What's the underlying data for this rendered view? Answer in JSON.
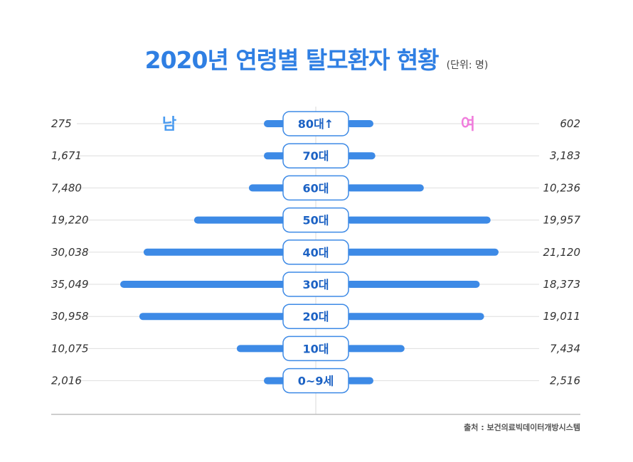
{
  "title": "2020년 연령별 탈모환자 현황",
  "unit": "(단위: 명)",
  "source": "출처 : 보건의료빅데이터개방시스템",
  "colors": {
    "title": "#2f7fe3",
    "bar": "#3d8ae6",
    "male_label": "#4a9bf0",
    "female_label": "#f07ddc",
    "badge_border": "#3d8ae6",
    "badge_text": "#1c62c4"
  },
  "chart_data": {
    "type": "bar",
    "orientation": "horizontal-butterfly",
    "categories": [
      "80대↑",
      "70대",
      "60대",
      "50대",
      "40대",
      "30대",
      "20대",
      "10대",
      "0~9세"
    ],
    "series": [
      {
        "name": "남",
        "side": "left",
        "values": [
          275,
          1671,
          7480,
          19220,
          30038,
          35049,
          30958,
          10075,
          2016
        ]
      },
      {
        "name": "여",
        "side": "right",
        "values": [
          602,
          3183,
          10236,
          19957,
          21120,
          18373,
          19011,
          7434,
          2516
        ]
      }
    ],
    "male_labels": [
      "275",
      "1,671",
      "7,480",
      "19,220",
      "30,038",
      "35,049",
      "30,958",
      "10,075",
      "2,016"
    ],
    "female_labels": [
      "602",
      "3,183",
      "10,236",
      "19,957",
      "21,120",
      "18,373",
      "19,011",
      "7,434",
      "2,516"
    ],
    "grid": true,
    "legend": [
      "남",
      "여"
    ]
  }
}
